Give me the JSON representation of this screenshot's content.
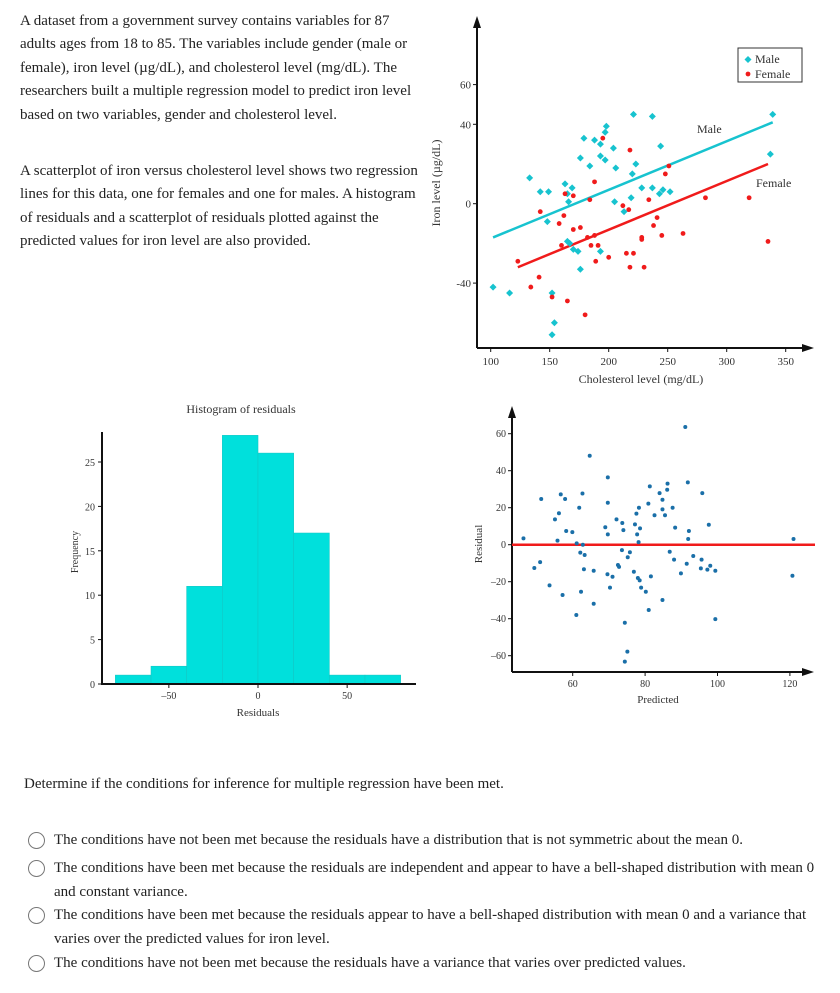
{
  "intro": {
    "paragraph1": "A dataset from a government survey contains variables for 87 adults ages from 18 to 85. The variables include gender (male or female), iron level (µg/dL), and cholesterol level (mg/dL). The researchers built a multiple regression model to predict iron level based on two variables, gender and cholesterol level.",
    "paragraph2": "A scatterplot of iron versus cholesterol level shows two regression lines for this data, one for females and one for males. A histogram of residuals and a scatterplot of residuals plotted against the predicted values for iron level are also provided."
  },
  "chart_data": [
    {
      "type": "scatter",
      "xlabel": "Cholesterol level (mg/dL)",
      "ylabel": "Iron level (µg/dL)",
      "xlim": [
        88,
        360
      ],
      "ylim": [
        -70,
        68
      ],
      "xticks": [
        100,
        150,
        200,
        250,
        300,
        350
      ],
      "yticks": [
        -40,
        0,
        40,
        60
      ],
      "legend_placement": "top-right",
      "grid": false,
      "series": [
        {
          "name": "Male",
          "color": "#17c3cf",
          "marker": "diamond",
          "points": [
            [
              102,
              -42
            ],
            [
              116,
              -45
            ],
            [
              133,
              13
            ],
            [
              142,
              6
            ],
            [
              149,
              6
            ],
            [
              148,
              -9
            ],
            [
              163,
              10
            ],
            [
              169,
              8
            ],
            [
              165,
              5
            ],
            [
              166,
              1
            ],
            [
              165,
              -19
            ],
            [
              167,
              -20
            ],
            [
              170,
              -23
            ],
            [
              174,
              -24
            ],
            [
              176,
              -33
            ],
            [
              152,
              -45
            ],
            [
              154,
              -60
            ],
            [
              152,
              -66
            ],
            [
              176,
              23
            ],
            [
              179,
              33
            ],
            [
              184,
              19
            ],
            [
              188,
              32
            ],
            [
              193,
              30
            ],
            [
              193,
              24
            ],
            [
              197,
              22
            ],
            [
              197,
              36
            ],
            [
              198,
              39
            ],
            [
              204,
              28
            ],
            [
              206,
              18
            ],
            [
              205,
              1
            ],
            [
              213,
              -4
            ],
            [
              193,
              -24
            ],
            [
              219,
              3
            ],
            [
              220,
              15
            ],
            [
              223,
              20
            ],
            [
              228,
              8
            ],
            [
              221,
              45
            ],
            [
              237,
              44
            ],
            [
              237,
              8
            ],
            [
              244,
              29
            ],
            [
              243,
              5
            ],
            [
              246,
              7
            ],
            [
              252,
              6
            ],
            [
              339,
              45
            ],
            [
              337,
              25
            ]
          ]
        },
        {
          "name": "Female",
          "color": "#f01b1b",
          "marker": "circle",
          "points": [
            [
              123,
              -29
            ],
            [
              134,
              -42
            ],
            [
              141,
              -37
            ],
            [
              142,
              -4
            ],
            [
              152,
              -47
            ],
            [
              158,
              -10
            ],
            [
              160,
              -21
            ],
            [
              162,
              -6
            ],
            [
              163,
              5
            ],
            [
              165,
              -49
            ],
            [
              170,
              4
            ],
            [
              170,
              -13
            ],
            [
              176,
              -12
            ],
            [
              180,
              -56
            ],
            [
              182,
              -17
            ],
            [
              184,
              2
            ],
            [
              185,
              -21
            ],
            [
              188,
              11
            ],
            [
              188,
              -16
            ],
            [
              189,
              -29
            ],
            [
              191,
              -21
            ],
            [
              195,
              33
            ],
            [
              200,
              -27
            ],
            [
              212,
              -1
            ],
            [
              215,
              -25
            ],
            [
              217,
              -3
            ],
            [
              218,
              27
            ],
            [
              218,
              -32
            ],
            [
              221,
              -25
            ],
            [
              228,
              -17
            ],
            [
              228,
              -18
            ],
            [
              230,
              -32
            ],
            [
              234,
              2
            ],
            [
              238,
              -11
            ],
            [
              241,
              -7
            ],
            [
              245,
              -16
            ],
            [
              248,
              15
            ],
            [
              251,
              19
            ],
            [
              263,
              -15
            ],
            [
              282,
              3
            ],
            [
              319,
              3
            ],
            [
              335,
              -19
            ]
          ]
        }
      ],
      "regression_lines": [
        {
          "label": "Male",
          "color": "#17c3cf",
          "from": [
            102,
            -17
          ],
          "to": [
            339,
            41
          ]
        },
        {
          "label": "Female",
          "color": "#f01b1b",
          "from": [
            123,
            -32
          ],
          "to": [
            335,
            20
          ]
        }
      ]
    },
    {
      "type": "bar",
      "title": "Histogram of residuals",
      "xlabel": "Residuals",
      "ylabel": "Frequency",
      "bin_edges": [
        -80,
        -60,
        -40,
        -20,
        0,
        20,
        40,
        60,
        80
      ],
      "values": [
        1,
        2,
        11,
        28,
        26,
        17,
        1,
        1
      ],
      "xticks": [
        -50,
        0,
        50
      ],
      "yticks": [
        0,
        5,
        10,
        15,
        20,
        25
      ],
      "xlim": [
        -88,
        89
      ],
      "ylim": [
        0,
        28.5
      ],
      "color": "#00e0dc"
    },
    {
      "type": "scatter",
      "xlabel": "Predicted",
      "ylabel": "Residual",
      "xlim": [
        43,
        127
      ],
      "ylim": [
        -69,
        74
      ],
      "xticks": [
        60,
        80,
        100,
        120
      ],
      "yticks": [
        -60,
        -40,
        -20,
        0,
        20,
        40,
        60
      ],
      "point_color": "#1a6fa8",
      "reference_line": {
        "y": 0,
        "color": "#f01b1b"
      },
      "points": [
        [
          46.4,
          3.4
        ],
        [
          49.4,
          -12.6
        ],
        [
          51,
          -9.4
        ],
        [
          51.3,
          24.7
        ],
        [
          53.6,
          -22
        ],
        [
          55.1,
          13.7
        ],
        [
          55.8,
          2.2
        ],
        [
          56.2,
          17
        ],
        [
          56.7,
          27.2
        ],
        [
          57.2,
          -27.2
        ],
        [
          57.9,
          24.7
        ],
        [
          58.2,
          7.4
        ],
        [
          59.9,
          6.8
        ],
        [
          61,
          -38
        ],
        [
          61.1,
          0.7
        ],
        [
          61.8,
          20
        ],
        [
          62.1,
          -4.3
        ],
        [
          62.3,
          -25.4
        ],
        [
          62.7,
          27.7
        ],
        [
          62.8,
          0
        ],
        [
          63.1,
          -13.3
        ],
        [
          63.3,
          -5.6
        ],
        [
          64.7,
          48.1
        ],
        [
          65.8,
          -14.1
        ],
        [
          65.8,
          -31.9
        ],
        [
          69,
          9.4
        ],
        [
          69.7,
          36.4
        ],
        [
          69.7,
          22.7
        ],
        [
          69.7,
          5.6
        ],
        [
          69.6,
          -16
        ],
        [
          70.3,
          -23.2
        ],
        [
          71,
          -17.3
        ],
        [
          72.1,
          13.7
        ],
        [
          72.5,
          -11
        ],
        [
          72.8,
          -12
        ],
        [
          73.6,
          -2.9
        ],
        [
          73.7,
          11.7
        ],
        [
          74,
          7.9
        ],
        [
          74.4,
          -42.2
        ],
        [
          74.4,
          -63.2
        ],
        [
          75.1,
          -57.8
        ],
        [
          75.2,
          -6.8
        ],
        [
          75.8,
          -4.1
        ],
        [
          76.9,
          -14.6
        ],
        [
          77.2,
          11
        ],
        [
          77.6,
          16.8
        ],
        [
          77.8,
          5.6
        ],
        [
          78,
          -18
        ],
        [
          78.2,
          1.4
        ],
        [
          78.3,
          20
        ],
        [
          78.5,
          -19.3
        ],
        [
          78.6,
          8.8
        ],
        [
          78.9,
          -23.2
        ],
        [
          80.2,
          -25.4
        ],
        [
          80.9,
          22.2
        ],
        [
          81,
          -35.3
        ],
        [
          81.3,
          31.5
        ],
        [
          81.6,
          -17.1
        ],
        [
          82.6,
          15.9
        ],
        [
          84,
          27.9
        ],
        [
          84.8,
          24.3
        ],
        [
          84.8,
          19.1
        ],
        [
          84.8,
          -29.9
        ],
        [
          85.5,
          15.9
        ],
        [
          86.1,
          29.7
        ],
        [
          86.2,
          33
        ],
        [
          86.8,
          -3.8
        ],
        [
          87.6,
          20
        ],
        [
          88,
          -8.1
        ],
        [
          88.3,
          9.2
        ],
        [
          89.9,
          -15.5
        ],
        [
          91.1,
          63.6
        ],
        [
          91.5,
          -10.3
        ],
        [
          91.8,
          33.7
        ],
        [
          91.9,
          3.1
        ],
        [
          92.1,
          7.4
        ],
        [
          93.3,
          -6.1
        ],
        [
          95.6,
          -8.1
        ],
        [
          95.8,
          27.9
        ],
        [
          95.4,
          -12.8
        ],
        [
          97.2,
          -13.5
        ],
        [
          97.6,
          10.8
        ],
        [
          98,
          -11.4
        ],
        [
          99.4,
          -14.1
        ],
        [
          99.4,
          -40.2
        ],
        [
          121,
          3.1
        ],
        [
          120.7,
          -16.8
        ]
      ]
    }
  ],
  "question": "Determine if the conditions for inference for multiple regression have been met.",
  "options": [
    {
      "label": "The conditions have not been met because the residuals have a distribution that is not symmetric about the mean 0.",
      "selected": false
    },
    {
      "label": "The conditions have been met because the residuals are independent and appear to have a bell-shaped distribution with mean 0 and constant variance.",
      "selected": false
    },
    {
      "label": "The conditions have been met because the residuals appear to have a bell-shaped distribution with mean 0 and a variance that varies over the predicted values for iron level.",
      "selected": false
    },
    {
      "label": "The conditions have not been met because the residuals have a variance that varies over predicted values.",
      "selected": false
    }
  ]
}
